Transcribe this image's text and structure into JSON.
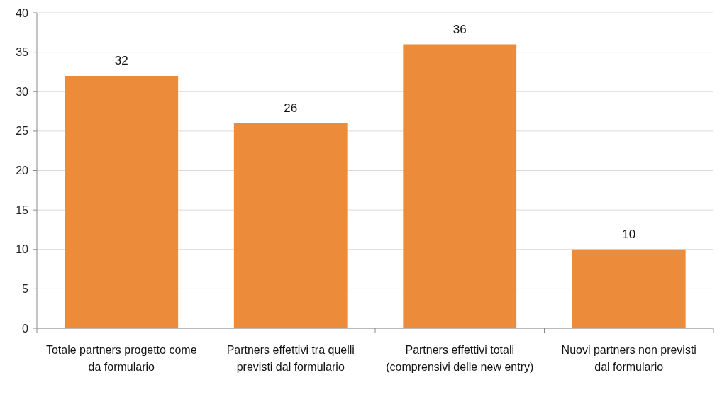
{
  "chart_data": {
    "type": "bar",
    "categories": [
      "Totale partners progetto come da formulario",
      "Partners effettivi tra quelli previsti dal formulario",
      "Partners effettivi totali (comprensivi delle new entry)",
      "Nuovi partners non previsti dal formulario"
    ],
    "values": [
      32,
      26,
      36,
      10
    ],
    "color": "#ec8b3a",
    "ylim": [
      0,
      40
    ],
    "yticks": [
      0,
      5,
      10,
      15,
      20,
      25,
      30,
      35,
      40
    ],
    "grid": "y",
    "data_labels": true
  }
}
